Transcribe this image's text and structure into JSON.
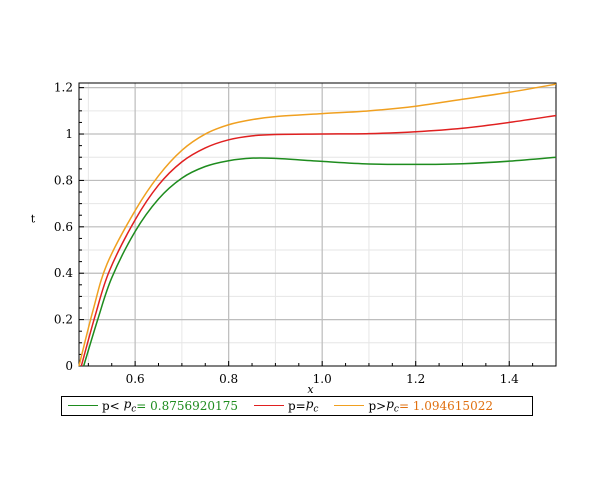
{
  "chart_data": {
    "type": "line",
    "title": "",
    "xlabel": "x",
    "ylabel": "t",
    "xlim": [
      0.48,
      1.5
    ],
    "ylim": [
      0,
      1.22
    ],
    "xticks": [
      0.6,
      0.8,
      1.0,
      1.2,
      1.4
    ],
    "xtick_labels": [
      "0.6",
      "0.8",
      "1.0",
      "1.2",
      "1.4"
    ],
    "yticks": [
      0,
      0.2,
      0.4,
      0.6,
      0.8,
      1.0,
      1.2
    ],
    "ytick_labels": [
      "0",
      "0.2",
      "0.4",
      "0.6",
      "0.8",
      "1",
      "1.2"
    ],
    "grid": true,
    "legend_position": "bottom",
    "series": [
      {
        "color": "#1e8c1e",
        "legend_prefix": "p<",
        "legend_symbol": "c",
        "legend_value": "= 0.8756920175",
        "value_color": "#1e8c1e",
        "x": [
          0.49,
          0.52,
          0.55,
          0.6,
          0.65,
          0.7,
          0.75,
          0.8,
          0.85,
          0.9,
          1.0,
          1.1,
          1.2,
          1.3,
          1.4,
          1.5
        ],
        "y": [
          0.0,
          0.2,
          0.38,
          0.58,
          0.72,
          0.81,
          0.86,
          0.885,
          0.896,
          0.895,
          0.882,
          0.871,
          0.869,
          0.872,
          0.883,
          0.9
        ]
      },
      {
        "color": "#e02020",
        "legend_prefix": "p=",
        "legend_symbol": "c",
        "legend_value": "",
        "value_color": "#000000",
        "x": [
          0.485,
          0.515,
          0.545,
          0.6,
          0.65,
          0.7,
          0.75,
          0.8,
          0.85,
          0.9,
          1.0,
          1.1,
          1.2,
          1.3,
          1.4,
          1.5
        ],
        "y": [
          0.0,
          0.22,
          0.41,
          0.63,
          0.78,
          0.88,
          0.94,
          0.975,
          0.992,
          0.998,
          1.0,
          1.002,
          1.01,
          1.025,
          1.05,
          1.08
        ]
      },
      {
        "color": "#f0a020",
        "legend_prefix": "p>",
        "legend_symbol": "c",
        "legend_value": "= 1.094615022",
        "value_color": "#e07010",
        "x": [
          0.48,
          0.51,
          0.54,
          0.6,
          0.65,
          0.7,
          0.75,
          0.8,
          0.85,
          0.9,
          1.0,
          1.1,
          1.2,
          1.3,
          1.4,
          1.5
        ],
        "y": [
          0.0,
          0.24,
          0.44,
          0.67,
          0.82,
          0.93,
          1.0,
          1.04,
          1.062,
          1.075,
          1.088,
          1.1,
          1.12,
          1.15,
          1.18,
          1.215
        ]
      }
    ]
  }
}
